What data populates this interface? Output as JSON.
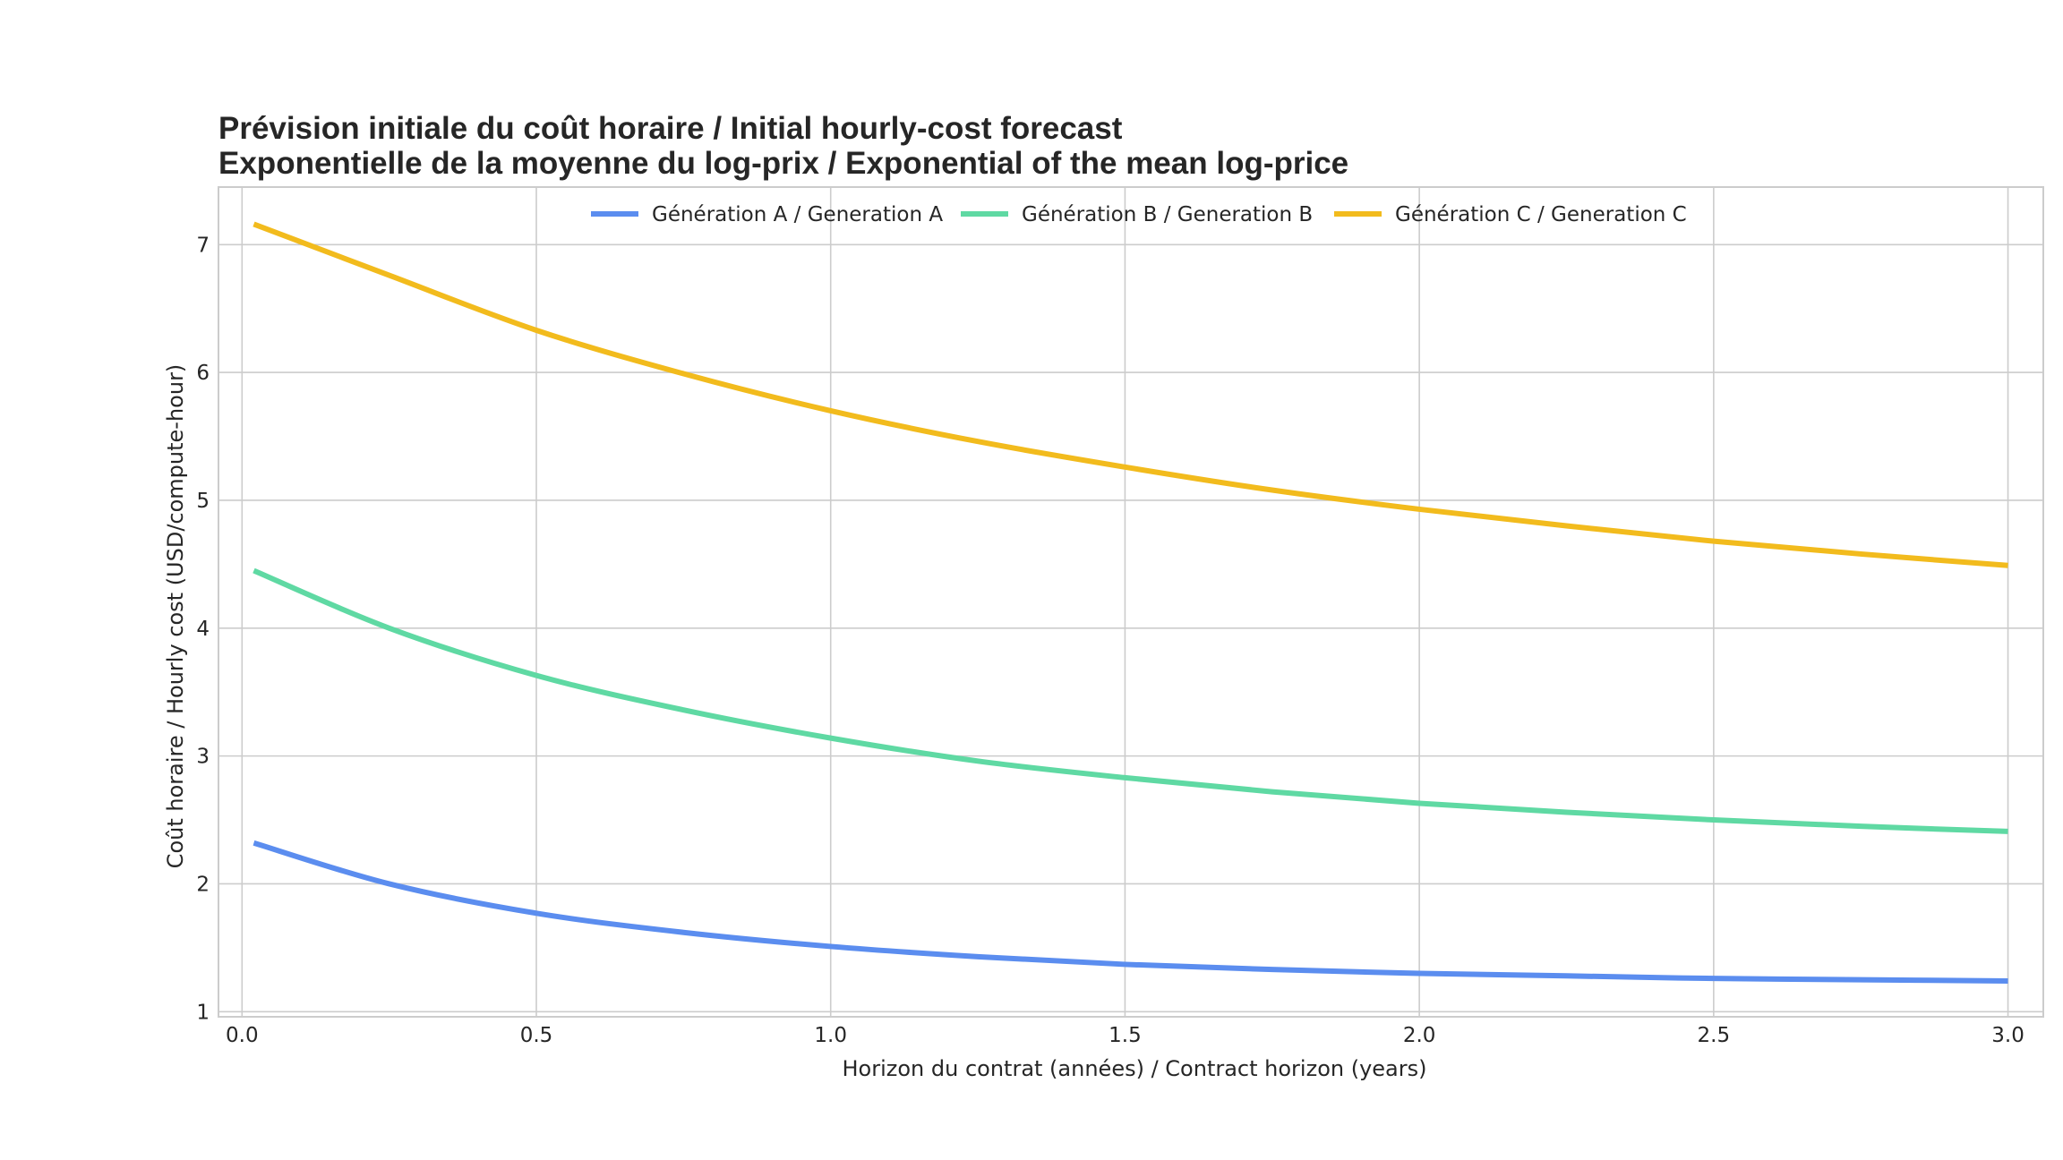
{
  "chart_data": {
    "type": "line",
    "title": [
      "Prévision initiale du coût horaire / Initial hourly-cost forecast",
      "Exponentielle de la moyenne du log-prix / Exponential of the mean log-price"
    ],
    "xlabel": "Horizon du contrat (années) / Contract horizon (years)",
    "ylabel": "Coût horaire / Hourly cost (USD/compute-hour)",
    "xlim": [
      -0.04,
      3.06
    ],
    "ylim": [
      0.96,
      7.45
    ],
    "xticks": [
      0.0,
      0.5,
      1.0,
      1.5,
      2.0,
      2.5,
      3.0
    ],
    "xtick_labels": [
      "0.0",
      "0.5",
      "1.0",
      "1.5",
      "2.0",
      "2.5",
      "3.0"
    ],
    "yticks": [
      1,
      2,
      3,
      4,
      5,
      6,
      7
    ],
    "ytick_labels": [
      "1",
      "2",
      "3",
      "4",
      "5",
      "6",
      "7"
    ],
    "grid": true,
    "legend_position": "top-center",
    "x": [
      0.02,
      0.25,
      0.5,
      0.75,
      1.0,
      1.25,
      1.5,
      1.75,
      2.0,
      2.25,
      2.5,
      2.75,
      3.0
    ],
    "series": [
      {
        "name": "Génération A / Generation A",
        "color": "#5b8def",
        "values": [
          2.32,
          2.0,
          1.77,
          1.62,
          1.51,
          1.43,
          1.37,
          1.33,
          1.3,
          1.28,
          1.26,
          1.25,
          1.24
        ]
      },
      {
        "name": "Génération B / Generation B",
        "color": "#5fd9a3",
        "values": [
          4.45,
          4.0,
          3.63,
          3.36,
          3.14,
          2.96,
          2.83,
          2.72,
          2.63,
          2.56,
          2.5,
          2.45,
          2.41
        ]
      },
      {
        "name": "Génération C / Generation C",
        "color": "#f2bb1d",
        "values": [
          7.16,
          6.76,
          6.33,
          5.99,
          5.7,
          5.46,
          5.26,
          5.08,
          4.93,
          4.8,
          4.68,
          4.58,
          4.49
        ]
      }
    ]
  }
}
